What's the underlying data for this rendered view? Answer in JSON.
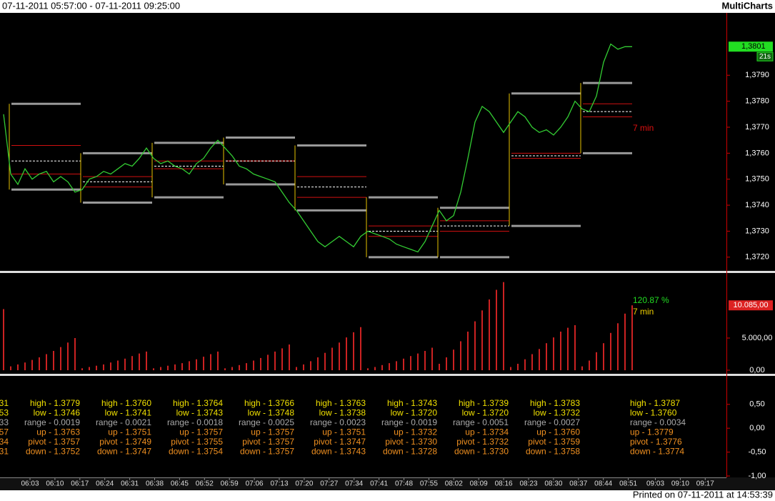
{
  "header": {
    "range": "07-11-2011 05:57:00 - 07-11-2011 09:25:00",
    "app": "MultiCharts"
  },
  "footer": "Printed on 07-11-2011 at 14:53:39",
  "time_axis": [
    "06:03",
    "06:10",
    "06:17",
    "06:24",
    "06:31",
    "06:38",
    "06:45",
    "06:52",
    "06:59",
    "07:06",
    "07:13",
    "07:20",
    "07:27",
    "07:34",
    "07:41",
    "07:48",
    "07:55",
    "08:02",
    "08:09",
    "08:16",
    "08:23",
    "08:30",
    "08:37",
    "08:44",
    "08:51",
    "09:03",
    "09:10",
    "09:17"
  ],
  "chart_data": [
    {
      "type": "line",
      "color": "#33cc33",
      "values": [
        1.3775,
        1.3752,
        1.3748,
        1.3754,
        1.375,
        1.3752,
        1.3753,
        1.3749,
        1.3751,
        1.3749,
        1.3745,
        1.3746,
        1.375,
        1.3751,
        1.3753,
        1.3752,
        1.3754,
        1.3756,
        1.3755,
        1.3758,
        1.3762,
        1.3758,
        1.3756,
        1.3757,
        1.3755,
        1.3754,
        1.3752,
        1.3756,
        1.3758,
        1.3762,
        1.3765,
        1.3762,
        1.3759,
        1.3755,
        1.3754,
        1.3752,
        1.3751,
        1.375,
        1.3749,
        1.3745,
        1.3741,
        1.3738,
        1.3734,
        1.373,
        1.3726,
        1.3724,
        1.3726,
        1.3728,
        1.3726,
        1.3724,
        1.3728,
        1.373,
        1.3729,
        1.3728,
        1.3727,
        1.3725,
        1.3724,
        1.3723,
        1.3722,
        1.3726,
        1.3732,
        1.3738,
        1.3734,
        1.3736,
        1.3745,
        1.3758,
        1.3772,
        1.3778,
        1.3776,
        1.3772,
        1.3768,
        1.3772,
        1.3776,
        1.3774,
        1.377,
        1.3768,
        1.3769,
        1.3767,
        1.377,
        1.3774,
        1.378,
        1.3777,
        1.3776,
        1.3782,
        1.3795,
        1.3802,
        1.38,
        1.3801,
        1.3801
      ],
      "ylim": [
        1.3715,
        1.3814
      ],
      "yticks": [
        {
          "value": 1.372,
          "label": "1,3720"
        },
        {
          "value": 1.373,
          "label": "1,3730"
        },
        {
          "value": 1.374,
          "label": "1,3740"
        },
        {
          "value": 1.375,
          "label": "1,3750"
        },
        {
          "value": 1.376,
          "label": "1,3760"
        },
        {
          "value": 1.377,
          "label": "1,3770"
        },
        {
          "value": 1.378,
          "label": "1,3780"
        },
        {
          "value": 1.379,
          "label": "1,3790"
        }
      ],
      "last_price": {
        "value": 1.3801,
        "label": "1,3801"
      },
      "countdown": "21s",
      "annotation": "7 min",
      "blocks": [
        {
          "high": 1.3779,
          "low": 1.3746,
          "up": 1.3763,
          "pivot": 1.3757,
          "down": 1.3752
        },
        {
          "high": 1.376,
          "low": 1.3741,
          "up": 1.3751,
          "pivot": 1.3749,
          "down": 1.3747
        },
        {
          "high": 1.3764,
          "low": 1.3743,
          "up": 1.3757,
          "pivot": 1.3755,
          "down": 1.3754
        },
        {
          "high": 1.3766,
          "low": 1.3748,
          "up": 1.3757,
          "pivot": 1.3757,
          "down": 1.3757
        },
        {
          "high": 1.3763,
          "low": 1.3738,
          "up": 1.3751,
          "pivot": 1.3747,
          "down": 1.3743
        },
        {
          "high": 1.3743,
          "low": 1.372,
          "up": 1.3732,
          "pivot": 1.373,
          "down": 1.3728
        },
        {
          "high": 1.3739,
          "low": 1.372,
          "up": 1.3734,
          "pivot": 1.3732,
          "down": 1.373
        },
        {
          "high": 1.3783,
          "low": 1.3732,
          "up": 1.376,
          "pivot": 1.3759,
          "down": 1.3758
        },
        {
          "high": 1.3787,
          "low": 1.376,
          "up": 1.3779,
          "pivot": 1.3776,
          "down": 1.3774
        }
      ]
    },
    {
      "type": "bar",
      "color": "#cc2222",
      "values": [
        9500,
        600,
        900,
        1200,
        1600,
        2000,
        2500,
        3000,
        3600,
        4300,
        5000,
        300,
        500,
        700,
        900,
        1200,
        1500,
        1800,
        2200,
        2600,
        2900,
        300,
        500,
        700,
        900,
        1100,
        1400,
        1700,
        2100,
        2500,
        2900,
        300,
        500,
        800,
        1100,
        1500,
        1900,
        2400,
        2900,
        3400,
        4000,
        500,
        900,
        1400,
        2000,
        2700,
        3500,
        4300,
        5100,
        5900,
        6700,
        300,
        500,
        800,
        1100,
        1400,
        1800,
        2200,
        2600,
        3000,
        3500,
        1000,
        2000,
        3200,
        4500,
        6000,
        7600,
        9300,
        11000,
        12500,
        13700,
        500,
        1000,
        1700,
        2500,
        3300,
        4200,
        5100,
        6000,
        6600,
        7000,
        600,
        1500,
        2800,
        4200,
        5800,
        7300,
        8800,
        10085
      ],
      "ylim": [
        0,
        15000
      ],
      "yticks": [
        {
          "value": 0,
          "label": "0,00"
        },
        {
          "value": 5000,
          "label": "5.000,00"
        }
      ],
      "last_value": {
        "value": 10085,
        "label": "10.085,00"
      },
      "percent": "120.87 %",
      "annotation": "7 min"
    },
    {
      "type": "text",
      "ylim": [
        -1.0,
        1.08
      ],
      "yticks": [
        {
          "value": 0.5,
          "label": "0,50"
        },
        {
          "value": 0,
          "label": "0,00"
        },
        {
          "value": -0.5,
          "label": "-0,50"
        },
        {
          "value": -1.0,
          "label": "-1,00"
        }
      ],
      "partial_labels": [
        "31",
        "53",
        "33",
        "57",
        "34",
        "31"
      ],
      "blocks": [
        [
          "high - 1.3779",
          "low - 1.3746",
          "range - 0.0019",
          "up - 1.3763",
          "pivot - 1.3757",
          "down - 1.3752"
        ],
        [
          "high - 1.3760",
          "low - 1.3741",
          "range - 0.0021",
          "up - 1.3751",
          "pivot - 1.3749",
          "down - 1.3747"
        ],
        [
          "high - 1.3764",
          "low - 1.3743",
          "range - 0.0018",
          "up - 1.3757",
          "pivot - 1.3755",
          "down - 1.3754"
        ],
        [
          "high - 1.3766",
          "low - 1.3748",
          "range - 0.0025",
          "up - 1.3757",
          "pivot - 1.3757",
          "down - 1.3757"
        ],
        [
          "high - 1.3763",
          "low - 1.3738",
          "range - 0.0023",
          "up - 1.3751",
          "pivot - 1.3747",
          "down - 1.3743"
        ],
        [
          "high - 1.3743",
          "low - 1.3720",
          "range - 0.0019",
          "up - 1.3732",
          "pivot - 1.3730",
          "down - 1.3728"
        ],
        [
          "high - 1.3739",
          "low - 1.3720",
          "range - 0.0051",
          "up - 1.3734",
          "pivot - 1.3732",
          "down - 1.3730"
        ],
        [
          "high - 1.3783",
          "low - 1.3732",
          "range - 0.0027",
          "up - 1.3760",
          "pivot - 1.3759",
          "down - 1.3758"
        ],
        [
          "high - 1.3787",
          "low - 1.3760",
          "range - 0.0034",
          "up - 1.3779",
          "pivot - 1.3776",
          "down - 1.3774"
        ]
      ]
    }
  ]
}
